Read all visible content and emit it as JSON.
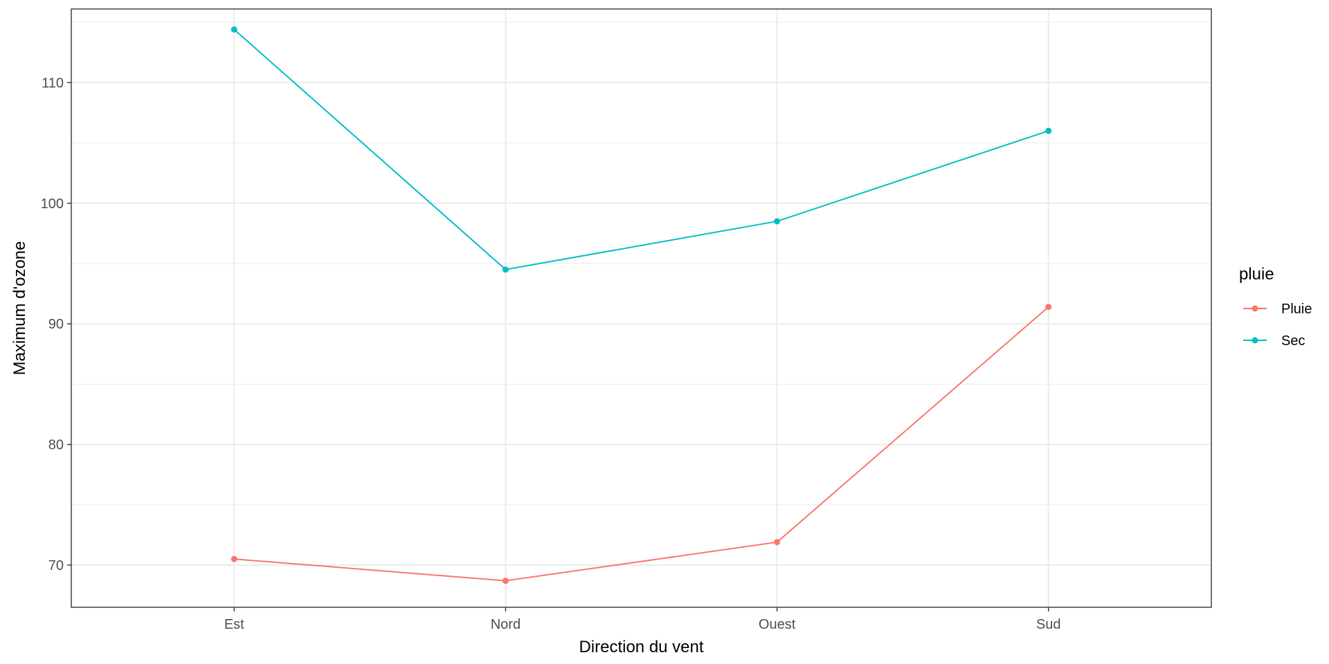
{
  "chart_data": {
    "type": "line",
    "categories": [
      "Est",
      "Nord",
      "Ouest",
      "Sud"
    ],
    "series": [
      {
        "name": "Pluie",
        "values": [
          70.5,
          68.7,
          71.9,
          91.4
        ],
        "color": "#F8766D"
      },
      {
        "name": "Sec",
        "values": [
          114.4,
          94.5,
          98.5,
          106.0
        ],
        "color": "#00BFC4"
      }
    ],
    "xlabel": "Direction du vent",
    "ylabel": "Maximum d'ozone",
    "ylim": [
      66.5,
      116.1
    ],
    "yticks": [
      70,
      80,
      90,
      100,
      110
    ],
    "ytick_labels": [
      "70",
      "80",
      "90",
      "100",
      "110"
    ],
    "legend": {
      "title": "pluie",
      "position": "right"
    },
    "grid": true,
    "panel_background": "#ffffff",
    "grid_color": "#ebebeb",
    "border_color": "#333333"
  }
}
